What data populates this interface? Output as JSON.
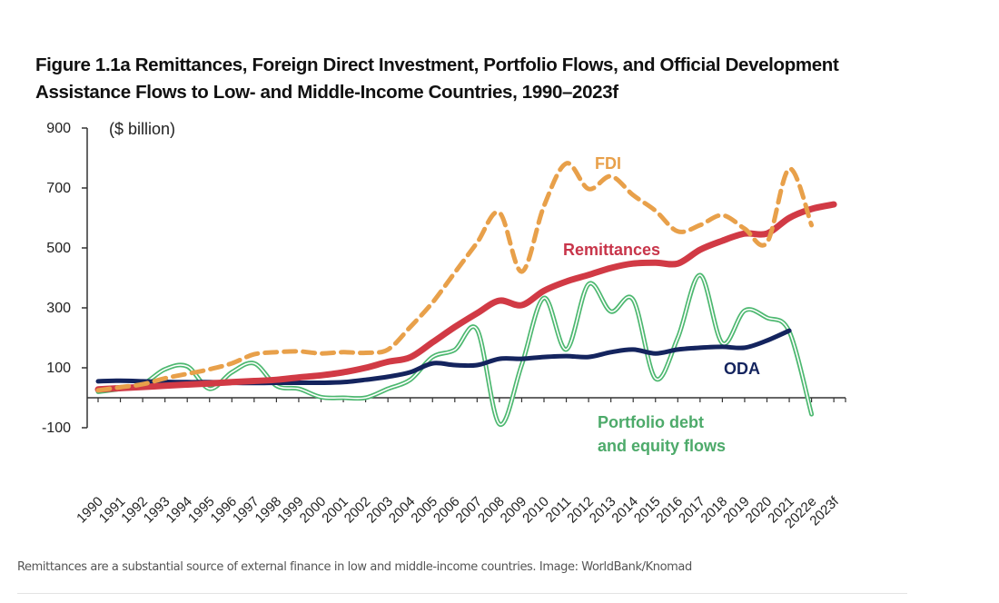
{
  "figure": {
    "title_line1": "Figure 1.1a Remittances, Foreign Direct Investment, Portfolio Flows, and Official Development",
    "title_line2": "Assistance Flows to Low- and Middle-Income Countries, 1990–2023f"
  },
  "caption": "Remittances are a substantial source of external finance in low and middle-income countries. Image: WorldBank/Knomad",
  "chart_data": {
    "type": "line",
    "title": "Figure 1.1a Remittances, Foreign Direct Investment, Portfolio Flows, and Official Development Assistance Flows to Low- and Middle-Income Countries, 1990–2023f",
    "unit_label": "($ billion)",
    "xlabel": "",
    "ylabel": "($ billion)",
    "ylim": [
      -100,
      900
    ],
    "yticks": [
      900,
      700,
      500,
      300,
      100,
      -100
    ],
    "grid": false,
    "legend": "inline labels",
    "categories": [
      "1990",
      "1991",
      "1992",
      "1993",
      "1994",
      "1995",
      "1996",
      "1997",
      "1998",
      "1999",
      "2000",
      "2001",
      "2002",
      "2003",
      "2004",
      "2005",
      "2006",
      "2007",
      "2008",
      "2009",
      "2010",
      "2011",
      "2012",
      "2013",
      "2014",
      "2015",
      "2016",
      "2017",
      "2018",
      "2019",
      "2020",
      "2021",
      "2022e",
      "2023f"
    ],
    "series": [
      {
        "name": "FDI",
        "label": "FDI",
        "color": "#E8A04A",
        "style": "dashed",
        "values": [
          25,
          35,
          45,
          65,
          80,
          95,
          115,
          145,
          152,
          155,
          148,
          152,
          150,
          161,
          236,
          318,
          418,
          518,
          618,
          421,
          640,
          782,
          697,
          739,
          676,
          624,
          555,
          576,
          609,
          564,
          518,
          764,
          576,
          null
        ]
      },
      {
        "name": "Remittances",
        "label": "Remittances",
        "color": "#D13A45",
        "style": "thick",
        "values": [
          28,
          32,
          36,
          40,
          44,
          48,
          52,
          56,
          60,
          68,
          75,
          85,
          100,
          120,
          135,
          185,
          236,
          282,
          324,
          309,
          357,
          388,
          410,
          433,
          448,
          451,
          448,
          494,
          524,
          548,
          548,
          600,
          630,
          645
        ]
      },
      {
        "name": "Portfolio debt and equity flows",
        "label_line1": "Portfolio debt",
        "label_line2": "and equity flows",
        "color": "#4DB870",
        "style": "double",
        "values": [
          20,
          30,
          45,
          95,
          105,
          30,
          85,
          115,
          40,
          30,
          2,
          0,
          0,
          30,
          60,
          136,
          160,
          227,
          -88,
          110,
          333,
          161,
          379,
          288,
          327,
          64,
          200,
          409,
          182,
          291,
          267,
          221,
          -55,
          null
        ]
      },
      {
        "name": "ODA",
        "label": "ODA",
        "color": "#14245E",
        "style": "solid",
        "values": [
          55,
          57,
          55,
          53,
          52,
          52,
          50,
          49,
          50,
          50,
          50,
          52,
          60,
          70,
          85,
          115,
          109,
          109,
          130,
          130,
          136,
          139,
          136,
          152,
          161,
          148,
          161,
          167,
          170,
          167,
          191,
          224,
          null,
          null
        ]
      }
    ]
  }
}
